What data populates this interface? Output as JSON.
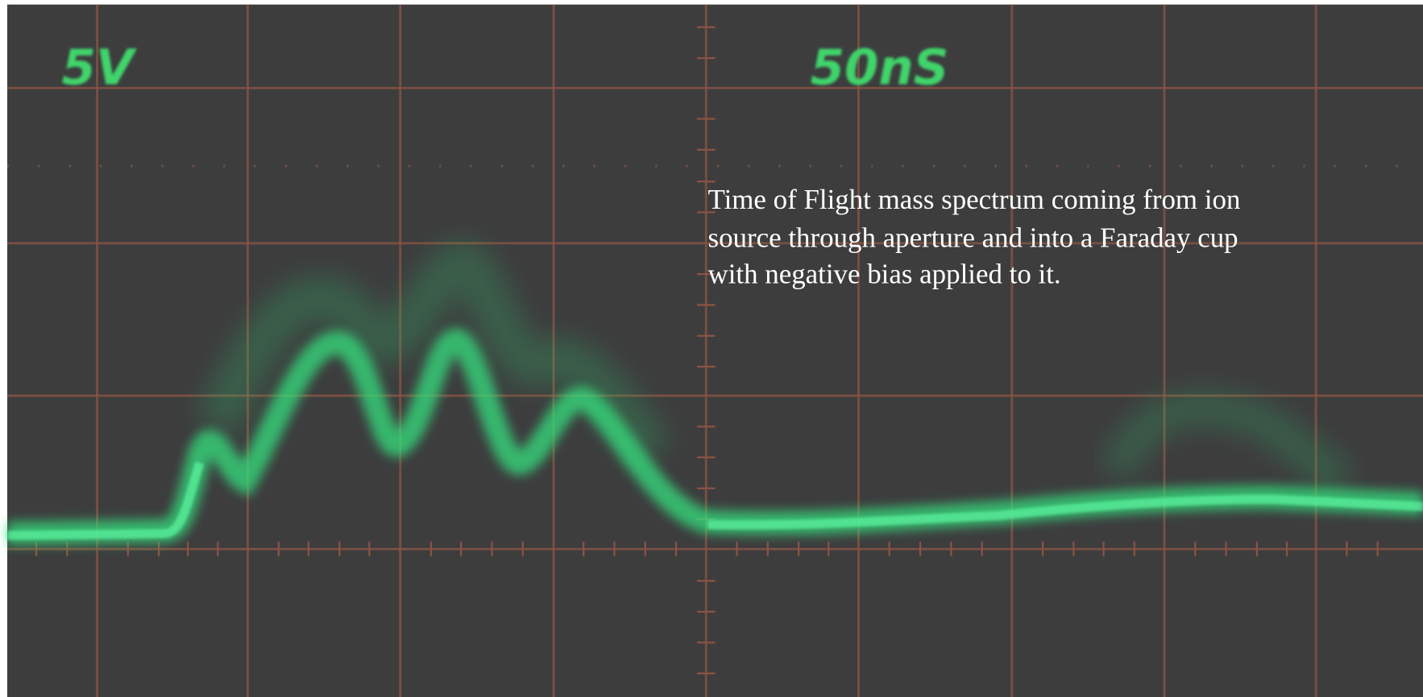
{
  "scope": {
    "volts_per_div": "5V",
    "time_per_div": "50nS"
  },
  "annotation": {
    "lines": [
      "Time of Flight mass spectrum coming from ion",
      "source through aperture and into a Faraday cup",
      "with negative bias applied to it."
    ]
  }
}
